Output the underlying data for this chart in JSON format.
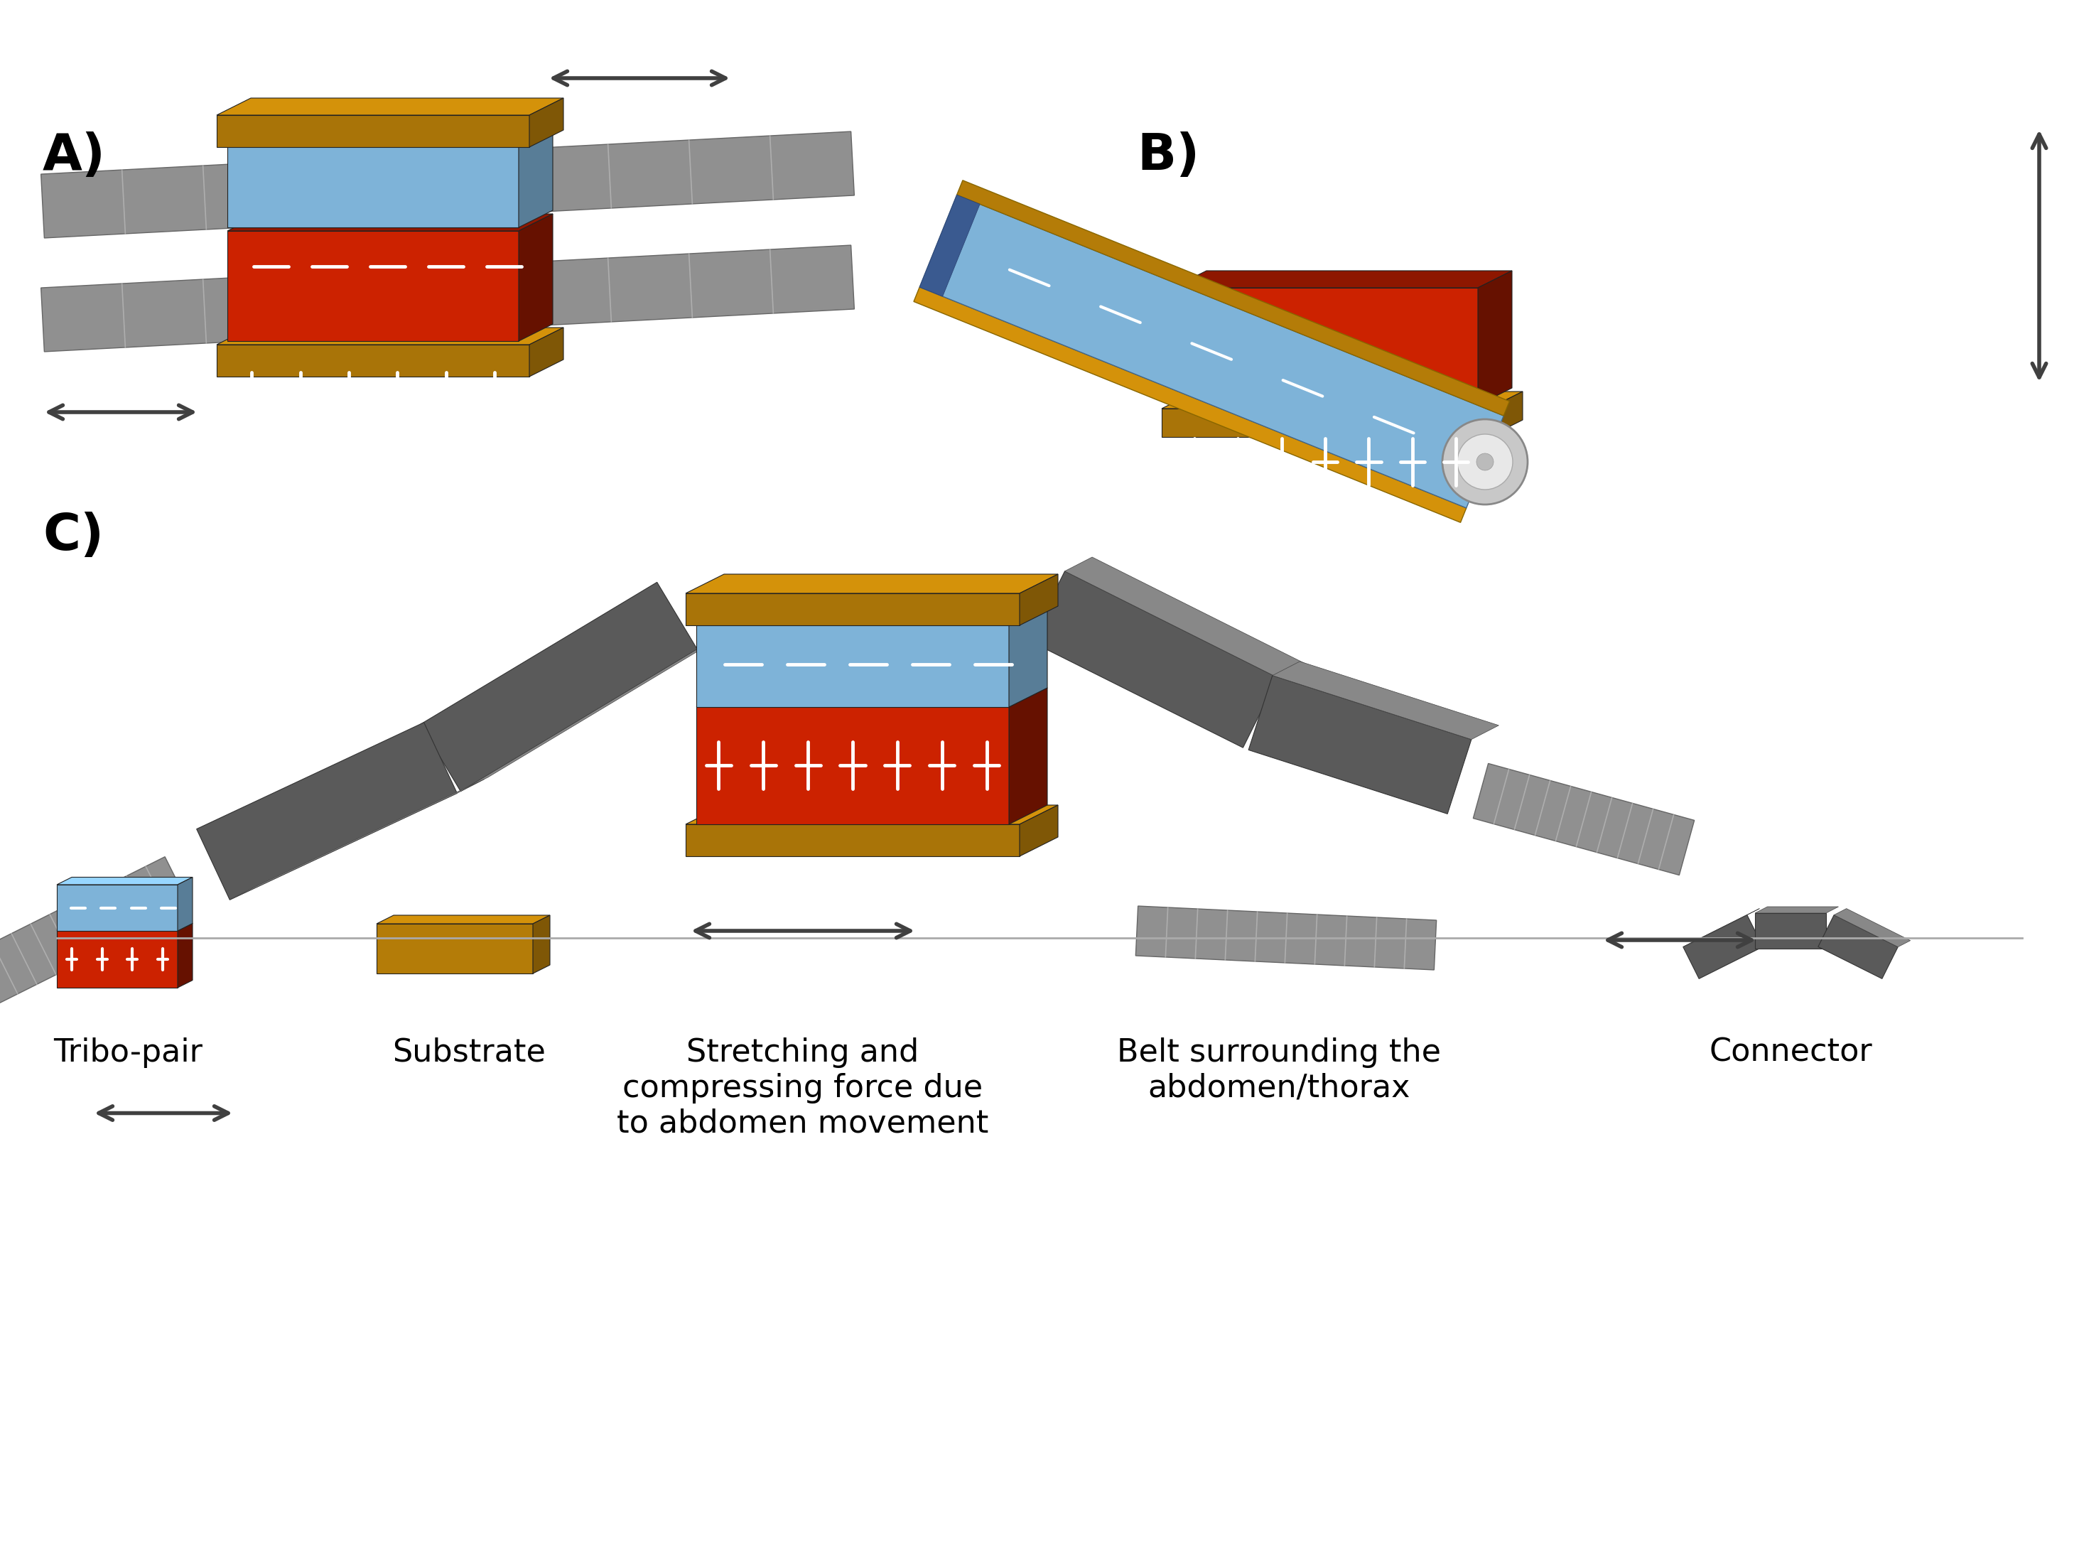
{
  "bg_color": "#ffffff",
  "gold_color": "#D4920A",
  "blue_color": "#7EB3D8",
  "red_color": "#CC2200",
  "gray_color": "#5a5a5a",
  "arrow_color": "#404040",
  "label_A": "A)",
  "label_B": "B)",
  "label_C": "C)",
  "legend_tribo": "Tribo-pair",
  "legend_substrate": "Substrate",
  "legend_stretch": "Stretching and\ncompressing force due\nto abdomen movement",
  "legend_belt": "Belt surrounding the\nabdomen/thorax",
  "legend_connector": "Connector"
}
